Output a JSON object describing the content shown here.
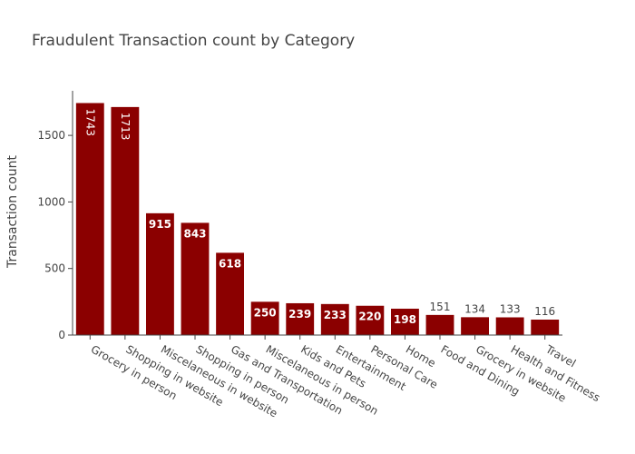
{
  "chart_data": {
    "type": "bar",
    "title": "Fraudulent Transaction count by Category",
    "xlabel": "",
    "ylabel": "Transaction count",
    "categories": [
      "Grocery in person",
      "Shopping in website",
      "Miscelaneous in website",
      "Shopping in person",
      "Gas and Transportation",
      "Miscelaneous in person",
      "Kids and Pets",
      "Entertainment",
      "Personal Care",
      "Home",
      "Food and Dining",
      "Grocery in website",
      "Health and Fitness",
      "Travel"
    ],
    "values": [
      1743,
      1713,
      915,
      843,
      618,
      250,
      239,
      233,
      220,
      198,
      151,
      134,
      133,
      116
    ],
    "data_labels": [
      "1743",
      "1713",
      "915",
      "843",
      "618",
      "250",
      "239",
      "233",
      "220",
      "198",
      "151",
      "134",
      "133",
      "116"
    ],
    "ylim": [
      0,
      1835
    ],
    "yticks": [
      0,
      500,
      1000,
      1500
    ],
    "ytick_labels": [
      "0",
      "500",
      "1000",
      "1500"
    ],
    "grid": false,
    "legend": "none",
    "bar_color": "#8b0000",
    "inside_label_color": "#ffffff",
    "outside_label_color": "#444444"
  }
}
